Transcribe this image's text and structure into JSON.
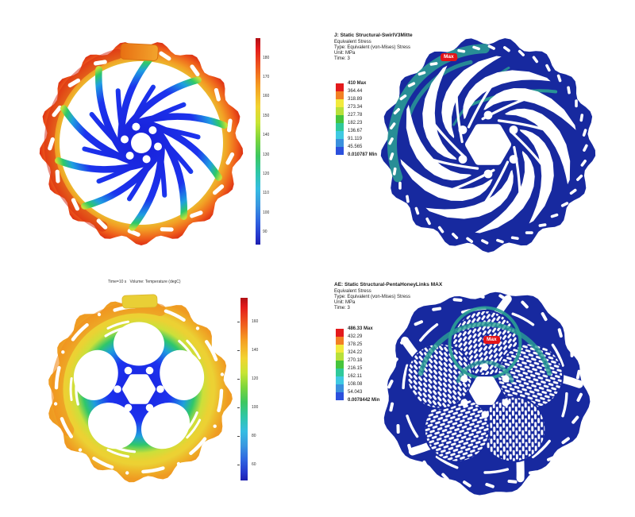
{
  "figure": {
    "description": "2x2 grid of brake-disc simulation contour plots",
    "max_marker": "Max"
  },
  "colors": {
    "navy_rotor": "#17299f",
    "teal_accent": "#2ba094",
    "thermal_blue": "#1c33ee",
    "max_tag_red": "#e31418",
    "pad_orange": "#e8781a",
    "pad_yellow": "#e9cf36",
    "legend_palette": [
      "#e31a1c",
      "#f28024",
      "#f2ea3c",
      "#b8e03a",
      "#46c43c",
      "#2fc99b",
      "#3fc9e2",
      "#3a90dd",
      "#2b50dd"
    ]
  },
  "chart_data": [
    {
      "id": "thermal_swirl",
      "type": "heatmap",
      "subtype": "FEA temperature contour, swirl-spoke brake rotor",
      "title": "",
      "colorbar_orientation": "vertical",
      "colorbar_ticks": [
        "180",
        "170",
        "160",
        "150",
        "140",
        "130",
        "120",
        "110",
        "100",
        "90"
      ],
      "colorbar_range": [
        90,
        185
      ],
      "reading": "rim hot (red/orange ~160-185), spokes and hub cold (blue ~90-110)"
    },
    {
      "id": "stress_swirl",
      "type": "heatmap",
      "subtype": "FEA von-Mises stress contour",
      "title": "J: Static Structural-SwirlV3Mitte",
      "lines": [
        "Equivalent Stress",
        "Type: Equivalent (von-Mises) Stress",
        "Unit: MPa",
        "Time: 3"
      ],
      "legend_values": [
        "410 Max",
        "364.44",
        "318.89",
        "273.34",
        "227.78",
        "182.23",
        "136.67",
        "91.119",
        "45.565",
        "0.010787 Min"
      ],
      "values_range": {
        "max": 410,
        "min": 0.010787
      },
      "unit": "MPa",
      "max_marker": "Max",
      "reading": "rotor almost entirely in lowest band (blue), teal mid-stress bands near upper-left rim, Max location flagged top-left"
    },
    {
      "id": "thermal_penta",
      "type": "heatmap",
      "subtype": "volume temperature contour, penta-cutout brake rotor",
      "title": "Time=10 s   Volume: Temperature (degC)",
      "colorbar_orientation": "vertical",
      "colorbar_ticks": [
        "160",
        "140",
        "120",
        "100",
        "80",
        "60"
      ],
      "colorbar_range": [
        55,
        170
      ],
      "reading": "rim warm (yellow/orange ~130-160), spokes and hub cold (blue ~60-80)"
    },
    {
      "id": "stress_penta",
      "type": "heatmap",
      "subtype": "FEA von-Mises stress contour",
      "title": "AE: Static Structural-PentaHoneyLinks MAX",
      "lines": [
        "Equivalent Stress",
        "Type: Equivalent (von-Mises) Stress",
        "Unit: MPa",
        "Time: 3"
      ],
      "legend_values": [
        "486.33 Max",
        "432.29",
        "378.25",
        "324.22",
        "270.18",
        "216.15",
        "162.11",
        "108.08",
        "54.043",
        "0.0078442 Min"
      ],
      "values_range": {
        "max": 486.33,
        "min": 0.0078442
      },
      "unit": "MPa",
      "max_marker": "Max",
      "reading": "honeycomb-link rotor mostly lowest band (blue), teal mid-stress around upper cutouts, Max flagged near top-center"
    }
  ]
}
